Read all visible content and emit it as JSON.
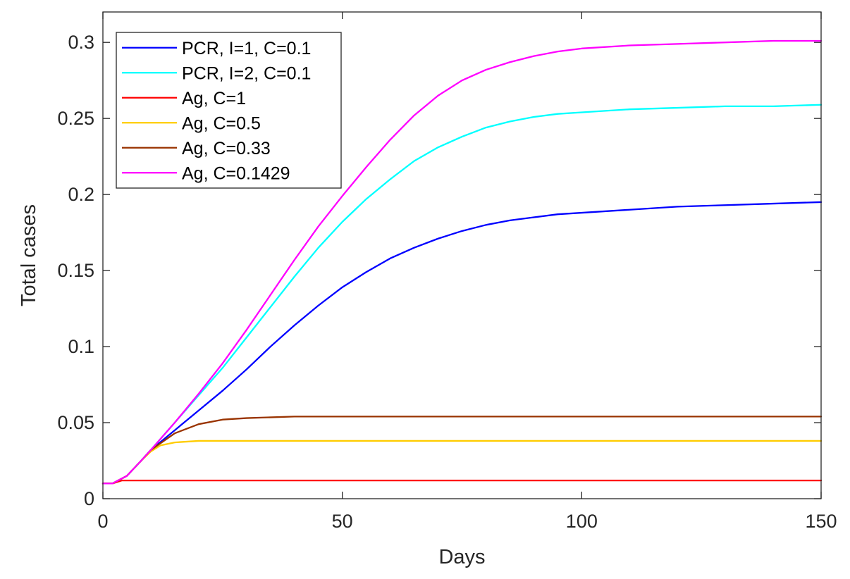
{
  "chart_data": {
    "type": "line",
    "title": "",
    "xlabel": "Days",
    "ylabel": "Total cases",
    "xlim": [
      0,
      150
    ],
    "ylim": [
      0,
      0.32
    ],
    "xticks": [
      0,
      50,
      100,
      150
    ],
    "yticks": [
      0,
      0.05,
      0.1,
      0.15,
      0.2,
      0.25,
      0.3
    ],
    "xtick_labels": [
      "0",
      "50",
      "100",
      "150"
    ],
    "ytick_labels": [
      "0",
      "0.05",
      "0.1",
      "0.15",
      "0.2",
      "0.25",
      "0.3"
    ],
    "grid": false,
    "legend_position": "top-left",
    "series": [
      {
        "name": "PCR, I=1, C=0.1",
        "color": "#0000FF",
        "x": [
          0,
          2,
          5,
          8,
          10,
          15,
          20,
          25,
          30,
          35,
          40,
          45,
          50,
          55,
          60,
          65,
          70,
          75,
          80,
          85,
          90,
          95,
          100,
          110,
          120,
          130,
          140,
          150
        ],
        "y": [
          0.01,
          0.01,
          0.015,
          0.025,
          0.032,
          0.045,
          0.058,
          0.071,
          0.085,
          0.1,
          0.114,
          0.127,
          0.139,
          0.149,
          0.158,
          0.165,
          0.171,
          0.176,
          0.18,
          0.183,
          0.185,
          0.187,
          0.188,
          0.19,
          0.192,
          0.193,
          0.194,
          0.195
        ]
      },
      {
        "name": "PCR, I=2, C=0.1",
        "color": "#00FFFF",
        "x": [
          0,
          2,
          5,
          8,
          10,
          15,
          20,
          25,
          30,
          35,
          40,
          45,
          50,
          55,
          60,
          65,
          70,
          75,
          80,
          85,
          90,
          95,
          100,
          110,
          120,
          130,
          140,
          150
        ],
        "y": [
          0.01,
          0.01,
          0.015,
          0.025,
          0.032,
          0.05,
          0.068,
          0.086,
          0.106,
          0.126,
          0.146,
          0.165,
          0.182,
          0.197,
          0.21,
          0.222,
          0.231,
          0.238,
          0.244,
          0.248,
          0.251,
          0.253,
          0.254,
          0.256,
          0.257,
          0.258,
          0.258,
          0.259
        ]
      },
      {
        "name": "Ag, C=1",
        "color": "#FF0000",
        "x": [
          0,
          2,
          4,
          150
        ],
        "y": [
          0.01,
          0.01,
          0.012,
          0.012
        ]
      },
      {
        "name": "Ag, C=0.5",
        "color": "#FFCC00",
        "x": [
          0,
          2,
          5,
          8,
          10,
          12,
          15,
          20,
          30,
          150
        ],
        "y": [
          0.01,
          0.01,
          0.015,
          0.025,
          0.031,
          0.035,
          0.037,
          0.038,
          0.038,
          0.038
        ]
      },
      {
        "name": "Ag, C=0.33",
        "color": "#993300",
        "x": [
          0,
          2,
          5,
          8,
          10,
          15,
          20,
          25,
          30,
          40,
          50,
          150
        ],
        "y": [
          0.01,
          0.01,
          0.015,
          0.025,
          0.032,
          0.043,
          0.049,
          0.052,
          0.053,
          0.054,
          0.054,
          0.054
        ]
      },
      {
        "name": "Ag, C=0.1429",
        "color": "#FF00FF",
        "x": [
          0,
          2,
          5,
          8,
          10,
          15,
          20,
          25,
          30,
          35,
          40,
          45,
          50,
          55,
          60,
          65,
          70,
          75,
          80,
          85,
          90,
          95,
          100,
          110,
          120,
          130,
          140,
          150
        ],
        "y": [
          0.01,
          0.01,
          0.015,
          0.025,
          0.032,
          0.05,
          0.069,
          0.089,
          0.111,
          0.134,
          0.157,
          0.179,
          0.199,
          0.218,
          0.236,
          0.252,
          0.265,
          0.275,
          0.282,
          0.287,
          0.291,
          0.294,
          0.296,
          0.298,
          0.299,
          0.3,
          0.301,
          0.301
        ]
      }
    ]
  }
}
